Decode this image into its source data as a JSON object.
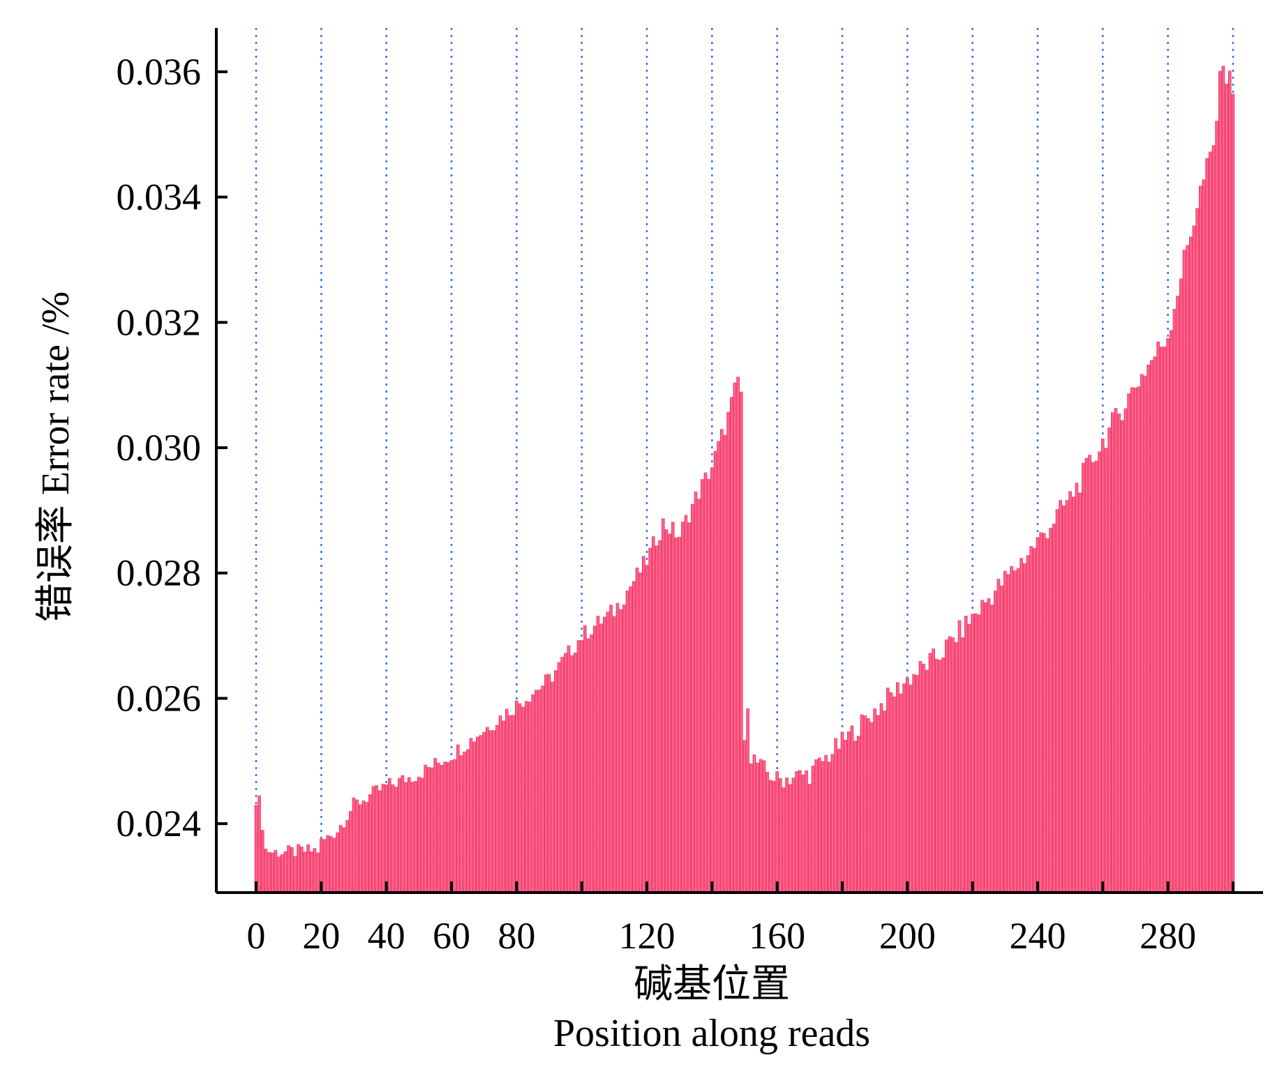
{
  "chart_data": {
    "type": "bar",
    "title": "",
    "xlabel": "碱基位置",
    "xlabel_en": "Position along reads",
    "ylabel": "错误率 Error rate /%",
    "bar_color": "#f0245a",
    "bar_highlight_color": "#ff7a9c",
    "grid_color": "#3a6bff",
    "grid": "vertical dotted at every 20 positions",
    "xlim": [
      0,
      300
    ],
    "ylim": [
      0.0229,
      0.0367
    ],
    "x_ticks": [
      0,
      20,
      40,
      60,
      80,
      120,
      160,
      200,
      240,
      280
    ],
    "y_ticks": [
      0.024,
      0.026,
      0.028,
      0.03,
      0.032,
      0.034,
      0.036
    ],
    "x_tick_labels": [
      "0",
      "20",
      "40",
      "60",
      "80",
      "120",
      "160",
      "200",
      "240",
      "280"
    ],
    "y_tick_labels": [
      "0.024",
      "0.026",
      "0.028",
      "0.030",
      "0.032",
      "0.034",
      "0.036"
    ],
    "vertical_gridlines": [
      0,
      20,
      40,
      60,
      80,
      100,
      120,
      140,
      160,
      180,
      200,
      220,
      240,
      260,
      280,
      300
    ],
    "anchors": [
      [
        0,
        0.0243
      ],
      [
        1,
        0.02445
      ],
      [
        2,
        0.0239
      ],
      [
        3,
        0.0236
      ],
      [
        5,
        0.02355
      ],
      [
        10,
        0.02355
      ],
      [
        19,
        0.02358
      ],
      [
        20,
        0.0237
      ],
      [
        25,
        0.0239
      ],
      [
        30,
        0.0243
      ],
      [
        40,
        0.0246
      ],
      [
        50,
        0.0248
      ],
      [
        60,
        0.0251
      ],
      [
        70,
        0.0255
      ],
      [
        80,
        0.0259
      ],
      [
        90,
        0.0263
      ],
      [
        100,
        0.027
      ],
      [
        110,
        0.0274
      ],
      [
        120,
        0.0282
      ],
      [
        125,
        0.0288
      ],
      [
        130,
        0.0286
      ],
      [
        135,
        0.0292
      ],
      [
        140,
        0.0297
      ],
      [
        145,
        0.0305
      ],
      [
        148,
        0.0311
      ],
      [
        149,
        0.0309
      ],
      [
        150,
        0.0252
      ],
      [
        151,
        0.026
      ],
      [
        152,
        0.0251
      ],
      [
        155,
        0.0249
      ],
      [
        160,
        0.0247
      ],
      [
        170,
        0.0248
      ],
      [
        180,
        0.0253
      ],
      [
        190,
        0.0258
      ],
      [
        200,
        0.0263
      ],
      [
        210,
        0.0267
      ],
      [
        220,
        0.0273
      ],
      [
        230,
        0.0279
      ],
      [
        240,
        0.0285
      ],
      [
        250,
        0.0292
      ],
      [
        260,
        0.0301
      ],
      [
        270,
        0.031
      ],
      [
        280,
        0.0318
      ],
      [
        285,
        0.033
      ],
      [
        290,
        0.0341
      ],
      [
        294,
        0.0348
      ],
      [
        297,
        0.0363
      ],
      [
        298,
        0.0359
      ],
      [
        300,
        0.0358
      ]
    ]
  }
}
